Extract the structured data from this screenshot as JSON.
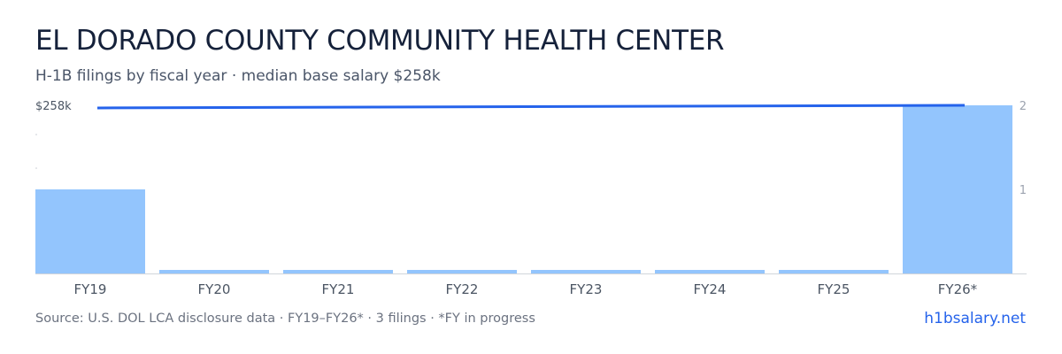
{
  "header": {
    "title": "EL DORADO COUNTY COMMUNITY HEALTH CENTER",
    "subtitle": "H-1B filings by fiscal year · median base salary $258k"
  },
  "footer": {
    "source": "Source: U.S. DOL LCA disclosure data · FY19–FY26* · 3 filings · *FY in progress",
    "brand": "h1bsalary.net"
  },
  "colors": {
    "bar": "#93c5fd",
    "line": "#2563eb",
    "axis": "#d1d5db",
    "tick_text": "#9ca3af",
    "category_text": "#4b5563"
  },
  "chart_data": {
    "type": "bar",
    "categories": [
      "FY19",
      "FY20",
      "FY21",
      "FY22",
      "FY23",
      "FY24",
      "FY25",
      "FY26*"
    ],
    "series": [
      {
        "type": "bar",
        "axis": "right",
        "values": [
          1,
          0,
          0,
          0,
          0,
          0,
          0,
          2
        ]
      },
      {
        "type": "line",
        "axis": "left",
        "values": [
          254,
          null,
          null,
          null,
          null,
          null,
          null,
          258
        ]
      }
    ],
    "left_axis": {
      "tick_label": "$258k",
      "ylim": [
        0,
        258
      ]
    },
    "right_axis": {
      "ticks": [
        1,
        2
      ],
      "ylim": [
        0,
        2
      ]
    },
    "grid": false,
    "legend": "none"
  }
}
